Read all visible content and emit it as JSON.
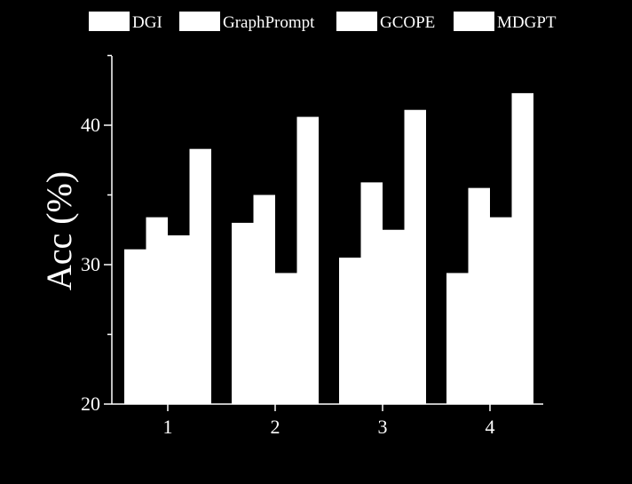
{
  "chart_data": {
    "type": "bar",
    "categories": [
      "1",
      "2",
      "3",
      "4"
    ],
    "series": [
      {
        "name": "DGI",
        "values": [
          31.1,
          33.0,
          30.5,
          29.4
        ]
      },
      {
        "name": "GraphPrompt",
        "values": [
          33.4,
          35.0,
          35.9,
          35.5
        ]
      },
      {
        "name": "GCOPE",
        "values": [
          32.1,
          29.4,
          32.5,
          33.4
        ]
      },
      {
        "name": "MDGPT",
        "values": [
          38.3,
          40.6,
          41.1,
          42.3
        ]
      }
    ],
    "title": "",
    "xlabel": "",
    "ylabel": "Acc (%)",
    "ylim": [
      20,
      45
    ],
    "yticks": [
      20,
      30,
      40
    ],
    "legend_position": "top",
    "grid": false,
    "bar_color": "#ffffff",
    "background_color": "#000000"
  }
}
